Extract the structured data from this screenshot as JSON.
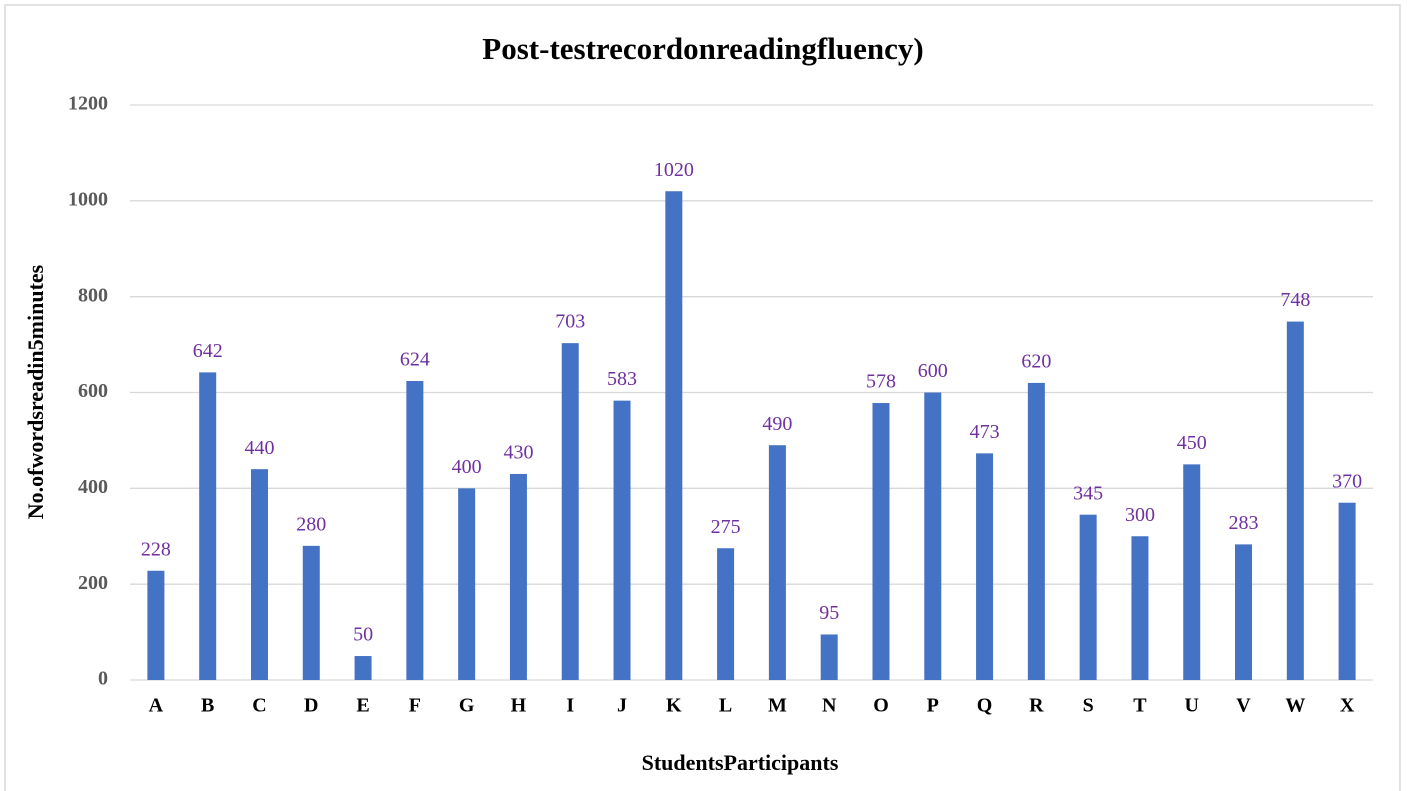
{
  "chart_data": {
    "type": "bar",
    "title": "Post-testrecordonreadingfluency)",
    "x_label": "StudentsParticipants",
    "y_label": "No.ofwordsreadin5minutes",
    "categories": [
      "A",
      "B",
      "C",
      "D",
      "E",
      "F",
      "G",
      "H",
      "I",
      "J",
      "K",
      "L",
      "M",
      "N",
      "O",
      "P",
      "Q",
      "R",
      "S",
      "T",
      "U",
      "V",
      "W",
      "X"
    ],
    "values": [
      228,
      642,
      440,
      280,
      50,
      624,
      400,
      430,
      703,
      583,
      1020,
      275,
      490,
      95,
      578,
      600,
      473,
      620,
      345,
      300,
      450,
      283,
      748,
      370
    ],
    "color": "#4472c4",
    "label_color": "#7030a0",
    "ylim": [
      0,
      1200
    ],
    "yticks": [
      0,
      200,
      400,
      600,
      800,
      1000,
      1200
    ],
    "grid": true
  }
}
